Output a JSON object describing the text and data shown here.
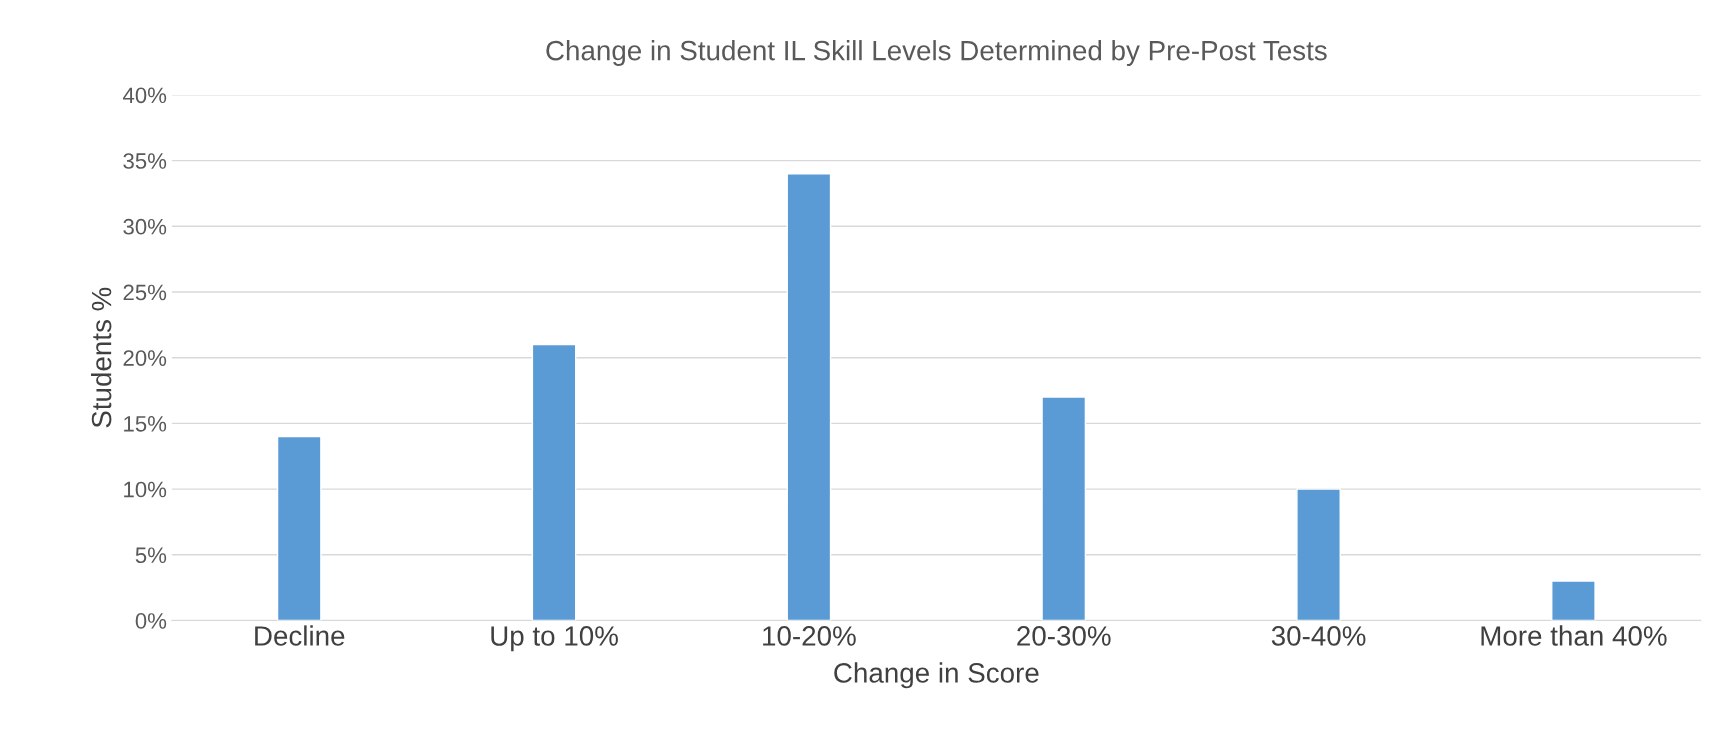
{
  "chart_data": {
    "type": "bar",
    "title": "Change in Student IL Skill Levels Determined by Pre-Post Tests",
    "xlabel": "Change in Score",
    "ylabel": "Students %",
    "categories": [
      "Decline",
      "Up to 10%",
      "10-20%",
      "20-30%",
      "30-40%",
      "More than 40%"
    ],
    "values": [
      14,
      21,
      34,
      17,
      10,
      3
    ],
    "color": "#5b9bd5",
    "ylim": [
      0,
      40
    ],
    "yticks": [
      {
        "value": 0,
        "label": "0%"
      },
      {
        "value": 5,
        "label": "5%"
      },
      {
        "value": 10,
        "label": "10%"
      },
      {
        "value": 15,
        "label": "15%"
      },
      {
        "value": 20,
        "label": "20%"
      },
      {
        "value": 25,
        "label": "25%"
      },
      {
        "value": 30,
        "label": "30%"
      },
      {
        "value": 35,
        "label": "35%"
      },
      {
        "value": 40,
        "label": "40%"
      }
    ],
    "grid": "y"
  }
}
